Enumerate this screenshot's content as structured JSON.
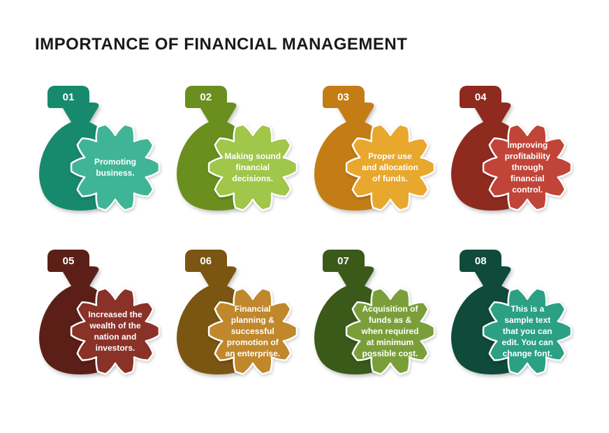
{
  "title": "IMPORTANCE OF FINANCIAL MANAGEMENT",
  "type": "infographic",
  "layout": {
    "rows": 2,
    "cols": 4
  },
  "items": [
    {
      "num": "01",
      "text": "Promoting business.",
      "bag_color": "#178a6e",
      "gear_color": "#3fb497",
      "tab_color": "#178a6e"
    },
    {
      "num": "02",
      "text": "Making sound financial decisions.",
      "bag_color": "#6a8f1f",
      "gear_color": "#a0c64a",
      "tab_color": "#6a8f1f"
    },
    {
      "num": "03",
      "text": "Proper use and allocation of funds.",
      "bag_color": "#c47d15",
      "gear_color": "#e8a82e",
      "tab_color": "#c47d15"
    },
    {
      "num": "04",
      "text": "Improving profitability through financial control.",
      "bag_color": "#8f2a1e",
      "gear_color": "#c14438",
      "tab_color": "#8f2a1e"
    },
    {
      "num": "05",
      "text": "Increased the wealth of the nation and investors.",
      "bag_color": "#5c1f18",
      "gear_color": "#8a3128",
      "tab_color": "#5c1f18"
    },
    {
      "num": "06",
      "text": "Financial planning & successful promotion of an enterprise.",
      "bag_color": "#7a5612",
      "gear_color": "#c0872c",
      "tab_color": "#7a5612"
    },
    {
      "num": "07",
      "text": "Acquisition of funds as & when required at minimum possible cost.",
      "bag_color": "#3b5a1a",
      "gear_color": "#7a9f3a",
      "tab_color": "#3b5a1a"
    },
    {
      "num": "08",
      "text": "This is a sample text that you can edit. You can change font.",
      "bag_color": "#0f4a3a",
      "gear_color": "#2ba084",
      "tab_color": "#0f4a3a"
    }
  ],
  "outline_color": "#ffffff",
  "background_color": "#ffffff"
}
